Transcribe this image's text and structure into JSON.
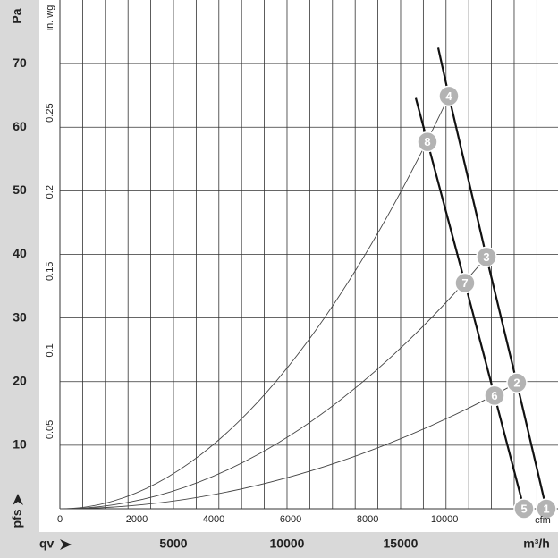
{
  "chart_data": {
    "type": "fan-curve",
    "y_label": "Pa",
    "y2_label": "in. wg",
    "y_quantity": "pfs",
    "x_quantity": "qv",
    "x_label": "m³/h",
    "x2_label": "cfm",
    "xlim": [
      0,
      21930
    ],
    "xticks": [
      5000,
      10000,
      15000
    ],
    "x2lim": [
      0,
      12950
    ],
    "x2ticks": [
      0,
      2000,
      4000,
      6000,
      8000,
      10000
    ],
    "ylim": [
      0,
      80
    ],
    "yticks": [
      10,
      20,
      30,
      40,
      50,
      60,
      70
    ],
    "y2lim": [
      0,
      0.3212
    ],
    "y2ticks": [
      0.05,
      0.1,
      0.15,
      0.2,
      0.25
    ],
    "xgrid": [
      1000,
      2000,
      3000,
      4000,
      5000,
      6000,
      7000,
      8000,
      9000,
      10000,
      11000,
      12000,
      13000,
      14000,
      15000,
      16000,
      17000,
      18000,
      19000,
      20000,
      21000
    ],
    "grid": true,
    "fan_curves": [
      {
        "x": [
          16654,
          17126,
          18780,
          20118,
          21417
        ],
        "values": [
          72.5,
          64.9,
          39.6,
          19.8,
          0
        ],
        "color": "#111111"
      },
      {
        "x": [
          15669,
          16181,
          17835,
          19134,
          20433
        ],
        "values": [
          64.6,
          57.7,
          35.5,
          17.8,
          0
        ],
        "color": "#111111"
      }
    ],
    "system_curves": [
      {
        "x": [
          0,
          17126
        ],
        "values": [
          0,
          64.9
        ],
        "color": "#444444"
      },
      {
        "x": [
          0,
          18780
        ],
        "values": [
          0,
          39.6
        ],
        "color": "#444444"
      },
      {
        "x": [
          0,
          20118
        ],
        "values": [
          0,
          19.8
        ],
        "color": "#444444"
      }
    ],
    "points": [
      {
        "label": "1",
        "x": 21417,
        "y": 0
      },
      {
        "label": "2",
        "x": 20118,
        "y": 19.8
      },
      {
        "label": "3",
        "x": 18780,
        "y": 39.6
      },
      {
        "label": "4",
        "x": 17126,
        "y": 64.9
      },
      {
        "label": "5",
        "x": 20433,
        "y": 0
      },
      {
        "label": "6",
        "x": 19134,
        "y": 17.8
      },
      {
        "label": "7",
        "x": 17835,
        "y": 35.5
      },
      {
        "label": "8",
        "x": 16181,
        "y": 57.7
      }
    ],
    "point_color": "#b3b3b3"
  }
}
